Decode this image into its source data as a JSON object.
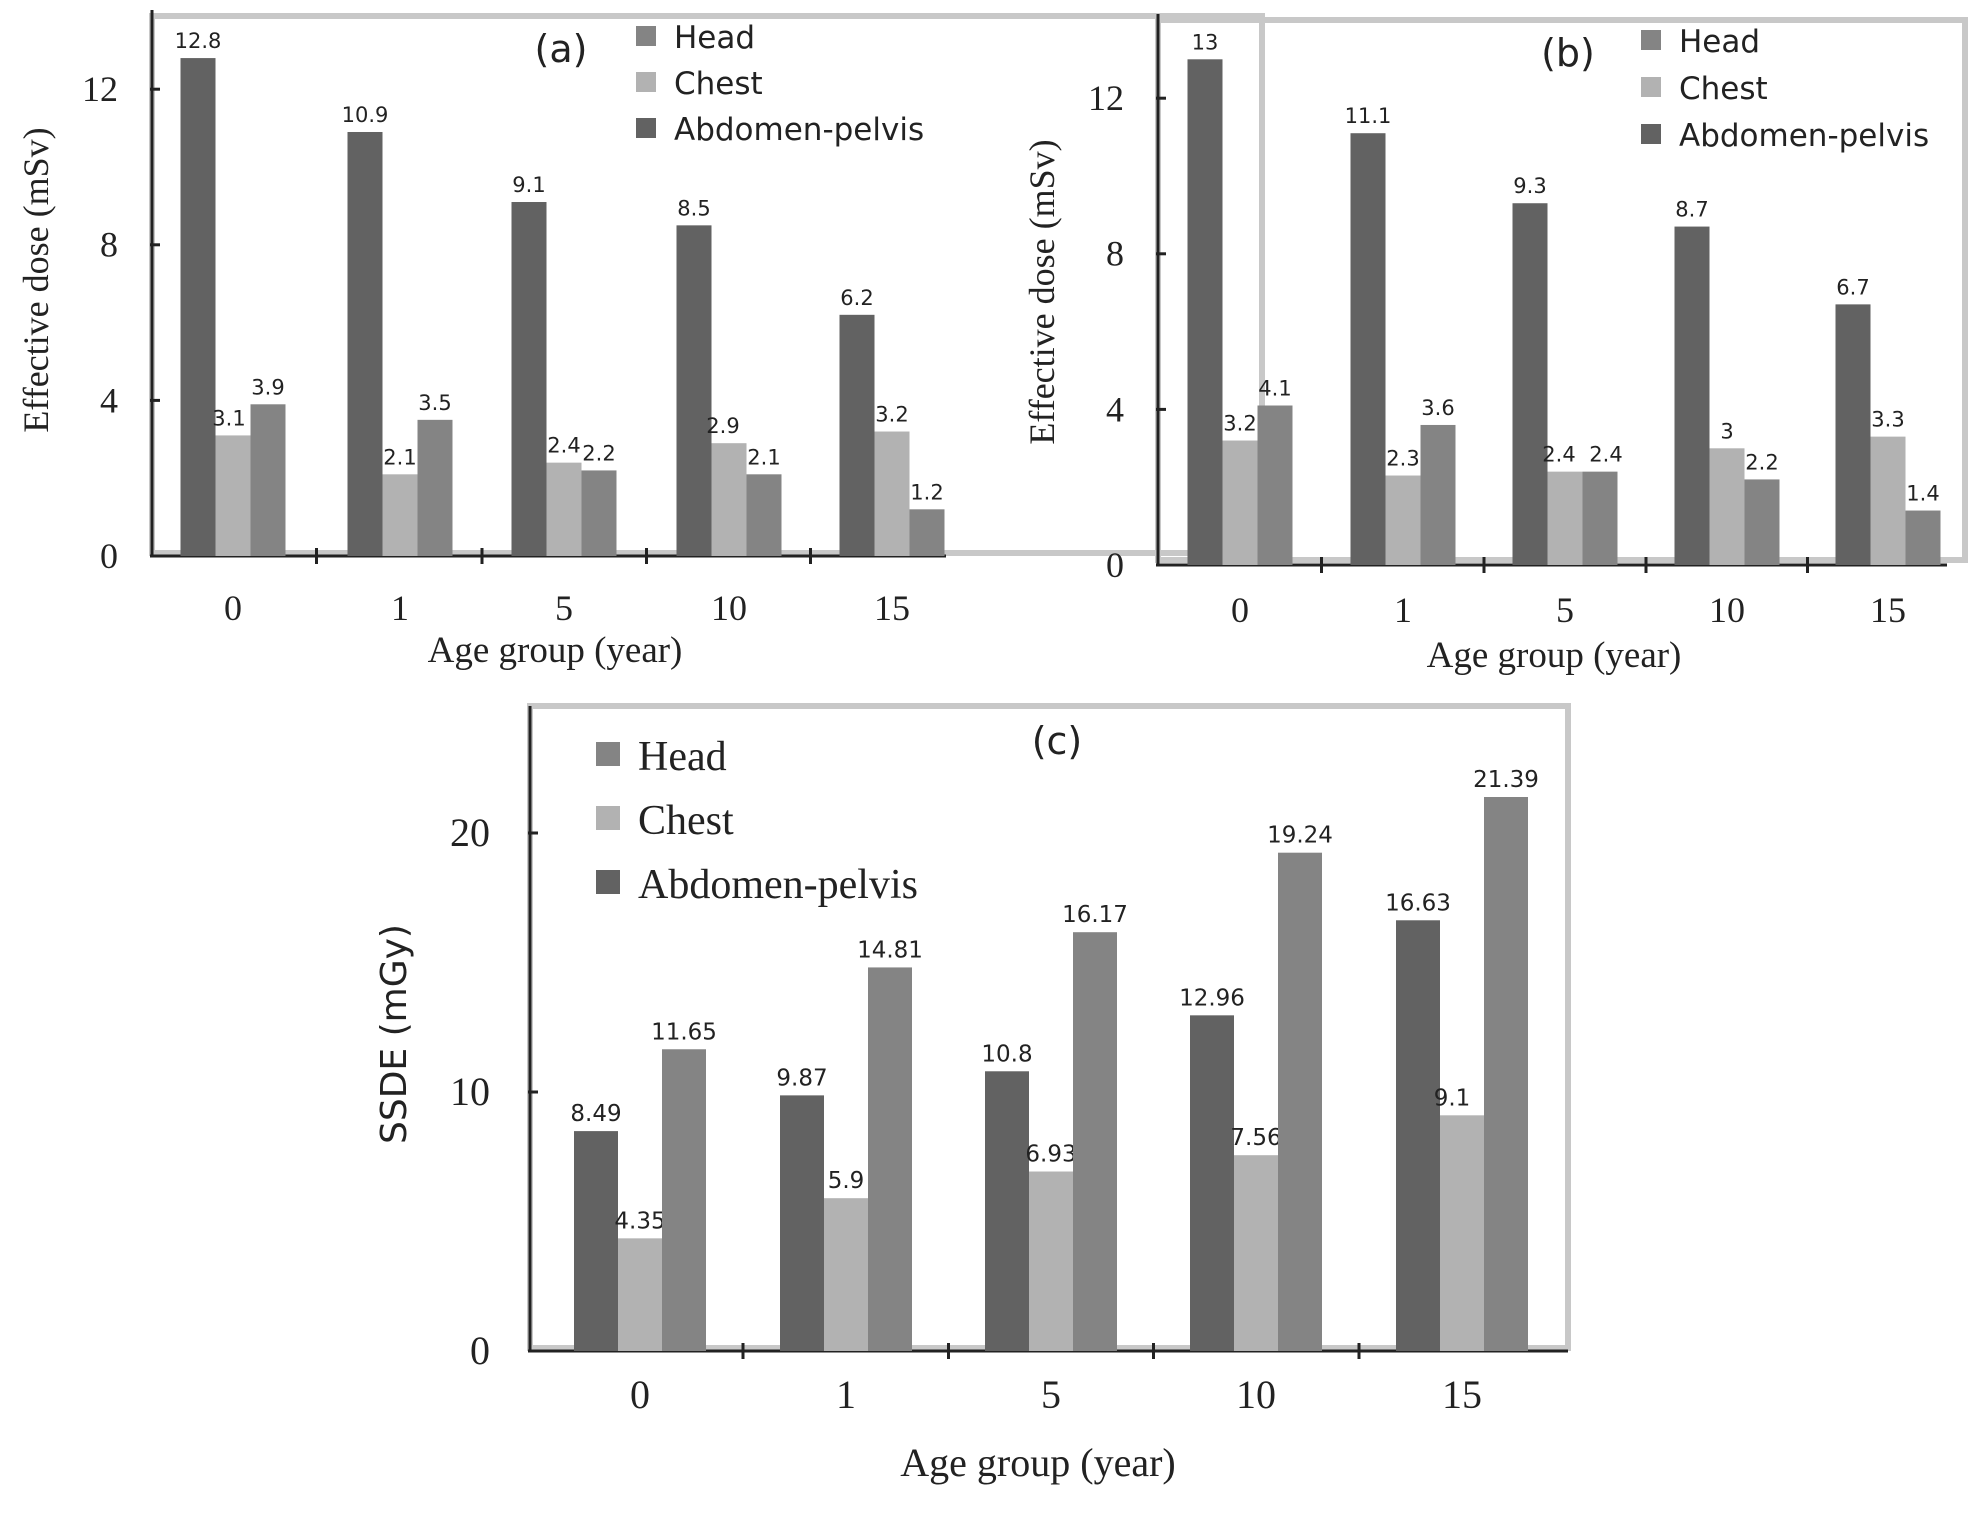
{
  "colors": {
    "abdomen": "#626262",
    "chest": "#b2b2b2",
    "head": "#848484",
    "frame": "#c8c8c8",
    "axis": "#222222",
    "text": "#222222"
  },
  "chart_data": [
    {
      "panel": "(a)",
      "type": "bar",
      "title": "(a)",
      "xlabel": "Age group (year)",
      "ylabel": "Effective dose (mSv)",
      "categories": [
        "0",
        "1",
        "5",
        "10",
        "15"
      ],
      "ylim": [
        0,
        14
      ],
      "yticks": [
        "0",
        "4",
        "8",
        "12"
      ],
      "ytick_values": [
        0,
        4,
        8,
        12
      ],
      "legend_position": "top-right",
      "legend": [
        "Head",
        "Chest",
        "Abdomen-pelvis"
      ],
      "series": [
        {
          "name": "Abdomen-pelvis",
          "color_key": "abdomen",
          "values": [
            12.8,
            10.9,
            9.1,
            8.5,
            6.2
          ],
          "labels": [
            "12.8",
            "10.9",
            "9.1",
            "8.5",
            "6.2"
          ]
        },
        {
          "name": "Chest",
          "color_key": "chest",
          "values": [
            3.1,
            2.1,
            2.4,
            2.9,
            3.2
          ],
          "labels": [
            "3.1",
            "2.1",
            "2.4",
            "2.9",
            "3.2"
          ]
        },
        {
          "name": "Head",
          "color_key": "head",
          "values": [
            3.9,
            3.5,
            2.2,
            2.1,
            1.2
          ],
          "labels": [
            "3.9",
            "3.5",
            "2.2",
            "2.1",
            "1.2"
          ]
        }
      ]
    },
    {
      "panel": "(b)",
      "type": "bar",
      "title": "(b)",
      "xlabel": "Age group (year)",
      "ylabel": "Effective dose (mSv)",
      "categories": [
        "0",
        "1",
        "5",
        "10",
        "15"
      ],
      "ylim": [
        0,
        14
      ],
      "yticks": [
        "0",
        "4",
        "8",
        "12"
      ],
      "ytick_values": [
        0,
        4,
        8,
        12
      ],
      "legend_position": "top-right",
      "legend": [
        "Head",
        "Chest",
        "Abdomen-pelvis"
      ],
      "series": [
        {
          "name": "Abdomen-pelvis",
          "color_key": "abdomen",
          "values": [
            13,
            11.1,
            9.3,
            8.7,
            6.7
          ],
          "labels": [
            "13",
            "11.1",
            "9.3",
            "8.7",
            "6.7"
          ]
        },
        {
          "name": "Chest",
          "color_key": "chest",
          "values": [
            3.2,
            2.3,
            2.4,
            3,
            3.3
          ],
          "labels": [
            "3.2",
            "2.3",
            "2.4",
            "3",
            "3.3"
          ]
        },
        {
          "name": "Head",
          "color_key": "head",
          "values": [
            4.1,
            3.6,
            2.4,
            2.2,
            1.4
          ],
          "labels": [
            "4.1",
            "3.6",
            "2.4",
            "2.2",
            "1.4"
          ]
        }
      ]
    },
    {
      "panel": "(c)",
      "type": "bar",
      "title": "(c)",
      "xlabel": "Age group (year)",
      "ylabel": "SSDE (mGy)",
      "categories": [
        "0",
        "1",
        "5",
        "10",
        "15"
      ],
      "ylim": [
        0,
        24
      ],
      "yticks": [
        "0",
        "10",
        "20"
      ],
      "ytick_values": [
        0,
        10,
        20
      ],
      "legend_position": "top-left",
      "legend": [
        "Head",
        "Chest",
        "Abdomen-pelvis"
      ],
      "series": [
        {
          "name": "Abdomen-pelvis",
          "color_key": "abdomen",
          "values": [
            8.49,
            9.87,
            10.8,
            12.96,
            16.63
          ],
          "labels": [
            "8.49",
            "9.87",
            "10.8",
            "12.96",
            "16.63"
          ]
        },
        {
          "name": "Chest",
          "color_key": "chest",
          "values": [
            4.35,
            5.9,
            6.93,
            7.56,
            9.1
          ],
          "labels": [
            "4.35",
            "5.9",
            "6.93",
            "7.56",
            "9.1"
          ]
        },
        {
          "name": "Head",
          "color_key": "head",
          "values": [
            11.65,
            14.81,
            16.17,
            19.24,
            21.39
          ],
          "labels": [
            "11.65",
            "14.81",
            "16.17",
            "19.24",
            "21.39"
          ]
        }
      ]
    }
  ]
}
